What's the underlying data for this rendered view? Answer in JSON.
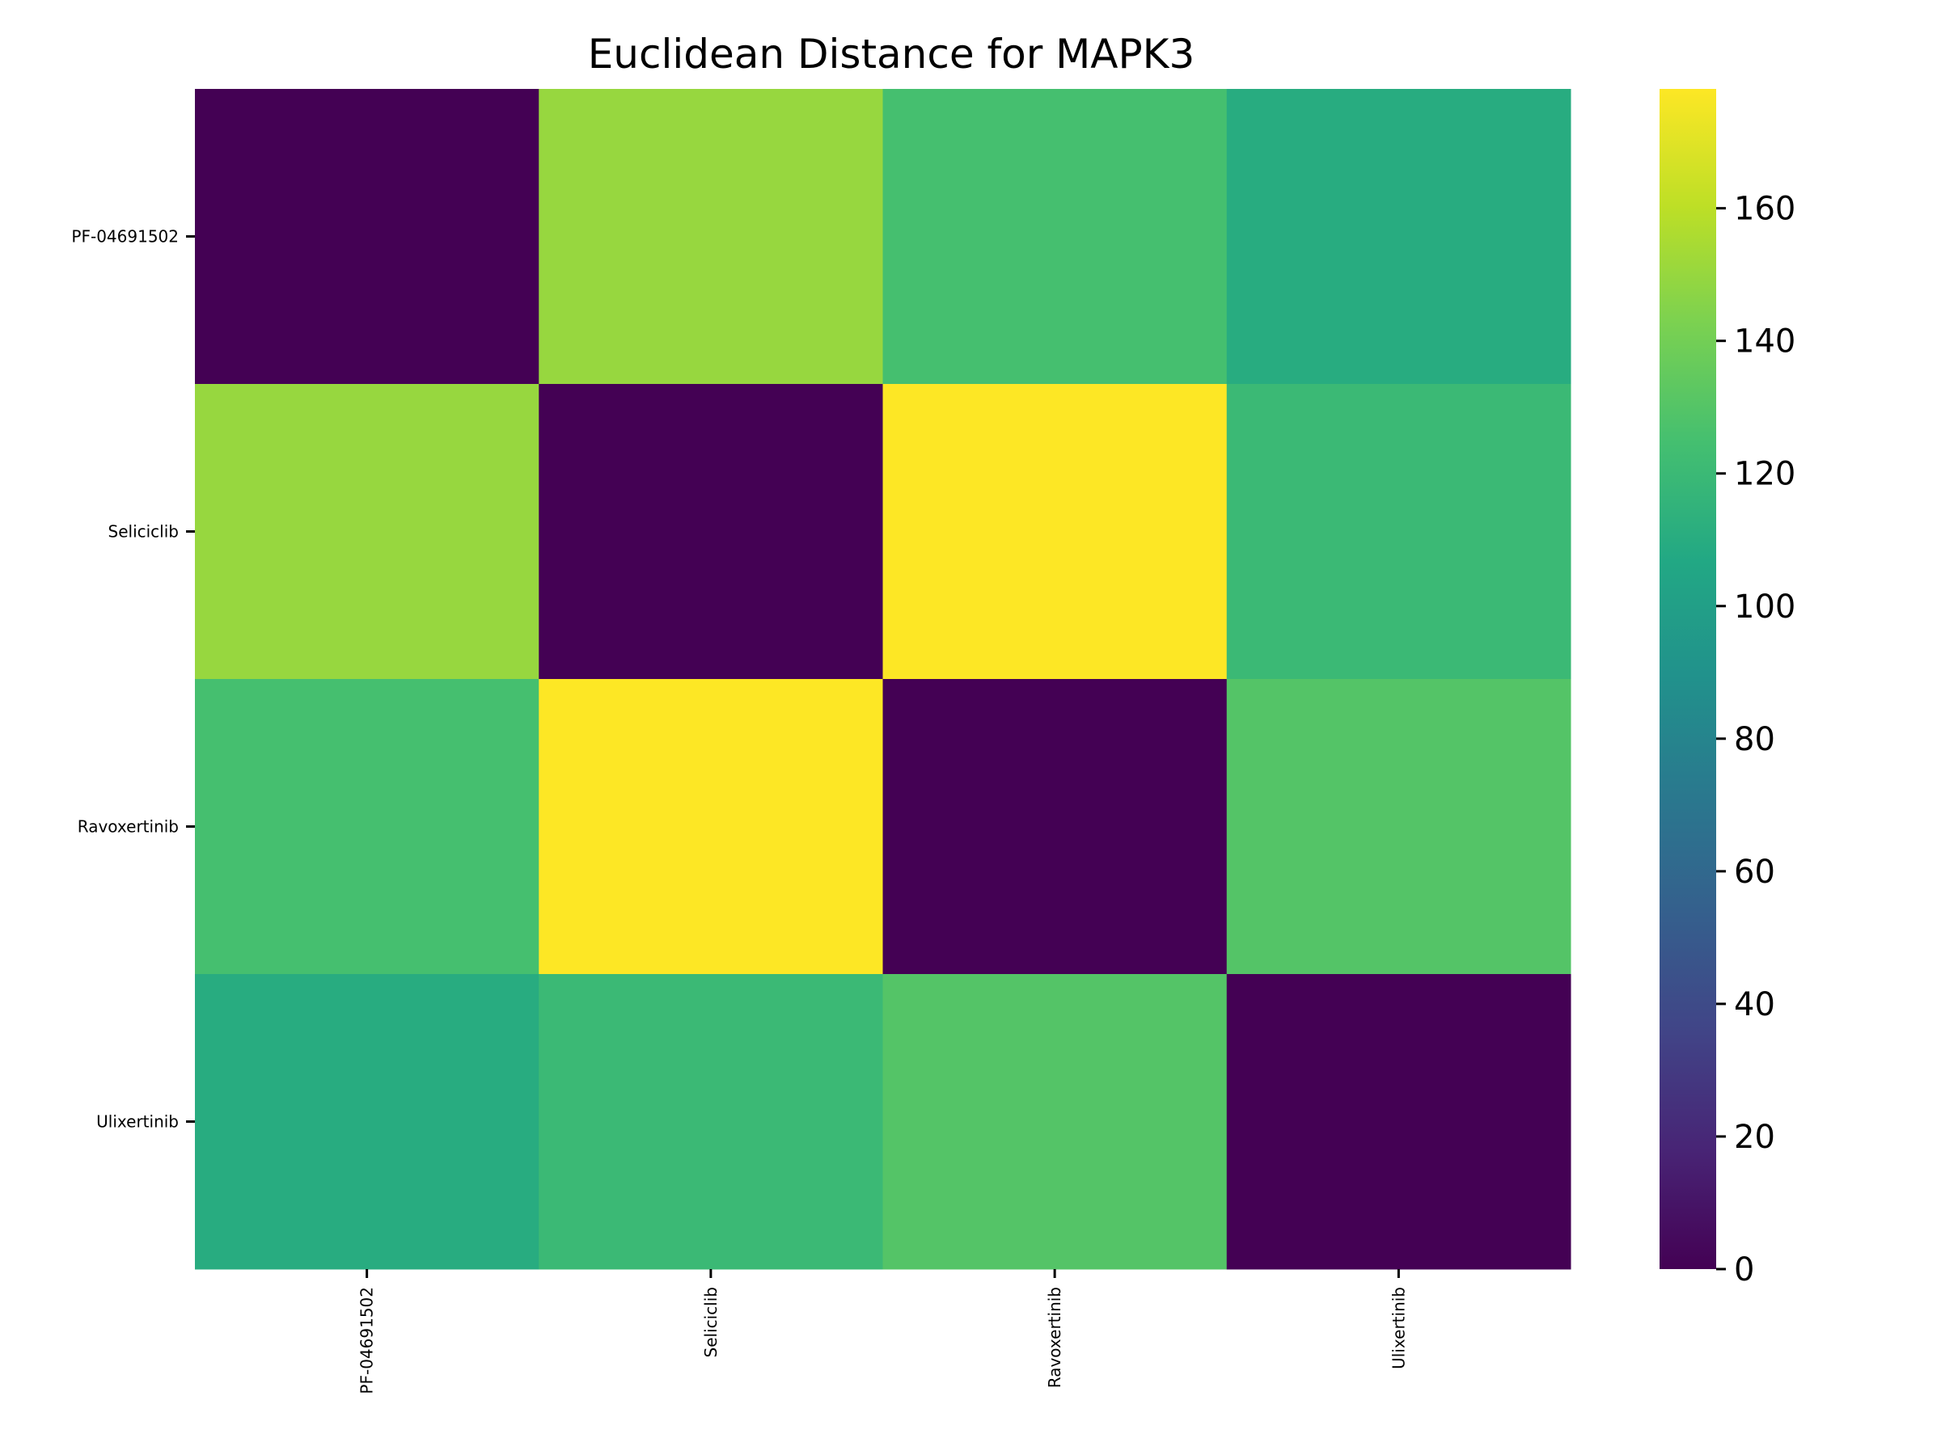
{
  "chart_data": {
    "type": "heatmap",
    "title": "Euclidean Distance for MAPK3",
    "x_categories": [
      "PF-04691502",
      "Seliciclib",
      "Ravoxertinib",
      "Ulixertinib"
    ],
    "y_categories": [
      "PF-04691502",
      "Seliciclib",
      "Ravoxertinib",
      "Ulixertinib"
    ],
    "values": [
      [
        0,
        150,
        125,
        110
      ],
      [
        150,
        0,
        178,
        120
      ],
      [
        125,
        178,
        0,
        130
      ],
      [
        110,
        120,
        130,
        0
      ]
    ],
    "colormap": "viridis",
    "colorbar": {
      "min": 0,
      "max": 178,
      "ticks": [
        0,
        20,
        40,
        60,
        80,
        100,
        120,
        140,
        160
      ]
    },
    "xlabel": "",
    "ylabel": ""
  }
}
